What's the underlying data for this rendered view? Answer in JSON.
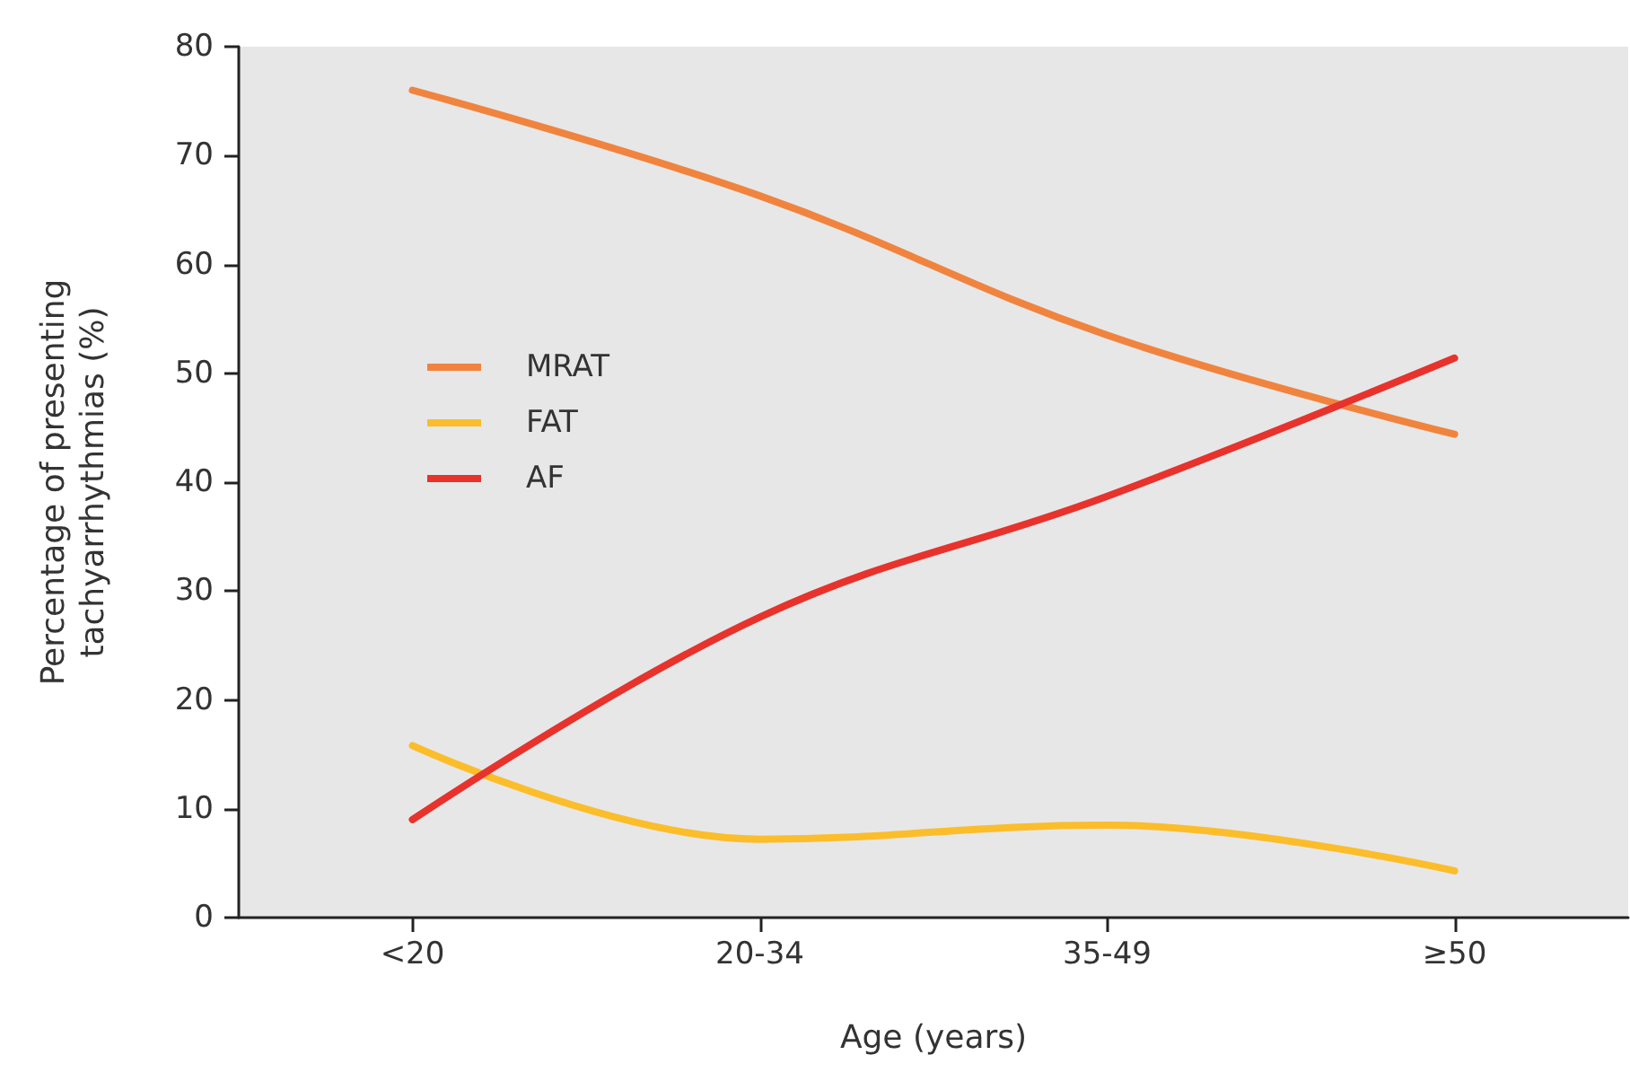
{
  "chart_data": {
    "type": "line",
    "xlabel": "Age (years)",
    "ylabel": "Percentage of presenting\ntachyarrhythmias (%)",
    "categories": [
      "<20",
      "20-34",
      "35-49",
      "≥50"
    ],
    "series": [
      {
        "name": "MRAT",
        "color": "#f0843e",
        "values": [
          76,
          66.3,
          53.5,
          44.4
        ]
      },
      {
        "name": "FAT",
        "color": "#fbbd2a",
        "values": [
          15.8,
          7.2,
          8.5,
          4.3
        ]
      },
      {
        "name": "AF",
        "color": "#e8322c",
        "values": [
          9,
          27.6,
          38.7,
          51.4
        ]
      }
    ],
    "ylim": [
      0,
      80
    ],
    "yticks": [
      0,
      10,
      20,
      30,
      40,
      50,
      60,
      70,
      80
    ],
    "grid": false,
    "legend": "center left",
    "marker": "none",
    "line_style": "solid"
  }
}
